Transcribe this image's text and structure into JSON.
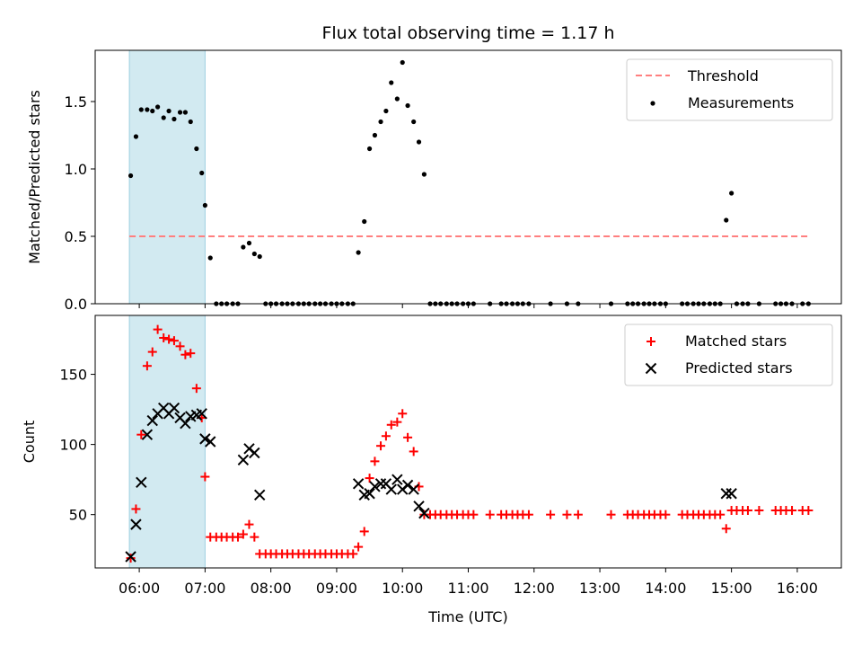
{
  "chart_data": [
    {
      "type": "scatter",
      "title": "Flux total observing time = 1.17 h",
      "xlabel": "",
      "ylabel": "Matched/Predicted stars",
      "ylim": [
        0,
        1.88
      ],
      "yticks": [
        "0.0",
        "0.5",
        "1.0",
        "1.5"
      ],
      "ytick_values": [
        0,
        0.5,
        1.0,
        1.5
      ],
      "xlim_hours": [
        5.33,
        16.67
      ],
      "shaded_span_hours": [
        5.85,
        7.0
      ],
      "shaded_color": "#add8e6",
      "legend_position": "top-right",
      "threshold": {
        "name": "Threshold",
        "value": 0.5,
        "x_range_hours": [
          5.85,
          16.17
        ],
        "color": "#ff7f7f"
      },
      "series": [
        {
          "name": "Measurements",
          "color": "#000000",
          "marker": "dot",
          "points": [
            [
              5.87,
              0.95
            ],
            [
              5.95,
              1.24
            ],
            [
              6.03,
              1.44
            ],
            [
              6.12,
              1.44
            ],
            [
              6.2,
              1.43
            ],
            [
              6.28,
              1.46
            ],
            [
              6.37,
              1.38
            ],
            [
              6.45,
              1.43
            ],
            [
              6.53,
              1.37
            ],
            [
              6.62,
              1.42
            ],
            [
              6.7,
              1.42
            ],
            [
              6.78,
              1.35
            ],
            [
              6.87,
              1.15
            ],
            [
              6.95,
              0.97
            ],
            [
              7.0,
              0.73
            ],
            [
              7.08,
              0.34
            ],
            [
              7.17,
              0.0
            ],
            [
              7.25,
              0.0
            ],
            [
              7.33,
              0.0
            ],
            [
              7.42,
              0.0
            ],
            [
              7.5,
              0.0
            ],
            [
              7.58,
              0.42
            ],
            [
              7.67,
              0.45
            ],
            [
              7.75,
              0.37
            ],
            [
              7.83,
              0.35
            ],
            [
              7.92,
              0.0
            ],
            [
              8.0,
              0.0
            ],
            [
              8.08,
              0.0
            ],
            [
              8.17,
              0.0
            ],
            [
              8.25,
              0.0
            ],
            [
              8.33,
              0.0
            ],
            [
              8.42,
              0.0
            ],
            [
              8.5,
              0.0
            ],
            [
              8.58,
              0.0
            ],
            [
              8.67,
              0.0
            ],
            [
              8.75,
              0.0
            ],
            [
              8.83,
              0.0
            ],
            [
              8.92,
              0.0
            ],
            [
              9.0,
              0.0
            ],
            [
              9.08,
              0.0
            ],
            [
              9.17,
              0.0
            ],
            [
              9.25,
              0.0
            ],
            [
              9.33,
              0.38
            ],
            [
              9.42,
              0.61
            ],
            [
              9.5,
              1.15
            ],
            [
              9.58,
              1.25
            ],
            [
              9.67,
              1.35
            ],
            [
              9.75,
              1.43
            ],
            [
              9.83,
              1.64
            ],
            [
              9.92,
              1.52
            ],
            [
              10.0,
              1.79
            ],
            [
              10.08,
              1.47
            ],
            [
              10.17,
              1.35
            ],
            [
              10.25,
              1.2
            ],
            [
              10.33,
              0.96
            ],
            [
              10.42,
              0.0
            ],
            [
              10.5,
              0.0
            ],
            [
              10.58,
              0.0
            ],
            [
              10.67,
              0.0
            ],
            [
              10.75,
              0.0
            ],
            [
              10.83,
              0.0
            ],
            [
              10.92,
              0.0
            ],
            [
              11.0,
              0.0
            ],
            [
              11.08,
              0.0
            ],
            [
              11.33,
              0.0
            ],
            [
              11.5,
              0.0
            ],
            [
              11.58,
              0.0
            ],
            [
              11.67,
              0.0
            ],
            [
              11.75,
              0.0
            ],
            [
              11.83,
              0.0
            ],
            [
              11.92,
              0.0
            ],
            [
              12.25,
              0.0
            ],
            [
              12.5,
              0.0
            ],
            [
              12.67,
              0.0
            ],
            [
              13.17,
              0.0
            ],
            [
              13.42,
              0.0
            ],
            [
              13.5,
              0.0
            ],
            [
              13.58,
              0.0
            ],
            [
              13.67,
              0.0
            ],
            [
              13.75,
              0.0
            ],
            [
              13.83,
              0.0
            ],
            [
              13.92,
              0.0
            ],
            [
              14.0,
              0.0
            ],
            [
              14.25,
              0.0
            ],
            [
              14.33,
              0.0
            ],
            [
              14.42,
              0.0
            ],
            [
              14.5,
              0.0
            ],
            [
              14.58,
              0.0
            ],
            [
              14.67,
              0.0
            ],
            [
              14.75,
              0.0
            ],
            [
              14.83,
              0.0
            ],
            [
              14.92,
              0.62
            ],
            [
              15.0,
              0.82
            ],
            [
              15.08,
              0.0
            ],
            [
              15.17,
              0.0
            ],
            [
              15.25,
              0.0
            ],
            [
              15.42,
              0.0
            ],
            [
              15.67,
              0.0
            ],
            [
              15.75,
              0.0
            ],
            [
              15.83,
              0.0
            ],
            [
              15.92,
              0.0
            ],
            [
              16.08,
              0.0
            ],
            [
              16.17,
              0.0
            ]
          ]
        }
      ]
    },
    {
      "type": "scatter",
      "title": "",
      "xlabel": "Time (UTC)",
      "ylabel": "Count",
      "ylim": [
        12,
        192
      ],
      "yticks": [
        "50",
        "100",
        "150"
      ],
      "ytick_values": [
        50,
        100,
        150
      ],
      "xlim_hours": [
        5.33,
        16.67
      ],
      "xticks": [
        "06:00",
        "07:00",
        "08:00",
        "09:00",
        "10:00",
        "11:00",
        "12:00",
        "13:00",
        "14:00",
        "15:00",
        "16:00"
      ],
      "xtick_values_hours": [
        6,
        7,
        8,
        9,
        10,
        11,
        12,
        13,
        14,
        15,
        16
      ],
      "shaded_span_hours": [
        5.85,
        7.0
      ],
      "shaded_color": "#add8e6",
      "legend_position": "top-right",
      "series": [
        {
          "name": "Matched stars",
          "color": "#ff0000",
          "marker": "plus",
          "points": [
            [
              5.87,
              19
            ],
            [
              5.95,
              54
            ],
            [
              6.03,
              107
            ],
            [
              6.12,
              156
            ],
            [
              6.2,
              166
            ],
            [
              6.28,
              182
            ],
            [
              6.37,
              176
            ],
            [
              6.45,
              175
            ],
            [
              6.53,
              174
            ],
            [
              6.62,
              170
            ],
            [
              6.7,
              164
            ],
            [
              6.78,
              165
            ],
            [
              6.87,
              140
            ],
            [
              6.95,
              119
            ],
            [
              7.0,
              77
            ],
            [
              7.08,
              34
            ],
            [
              7.17,
              34
            ],
            [
              7.25,
              34
            ],
            [
              7.33,
              34
            ],
            [
              7.42,
              34
            ],
            [
              7.5,
              34
            ],
            [
              7.58,
              36
            ],
            [
              7.67,
              43
            ],
            [
              7.75,
              34
            ],
            [
              7.83,
              22
            ],
            [
              7.92,
              22
            ],
            [
              8.0,
              22
            ],
            [
              8.08,
              22
            ],
            [
              8.17,
              22
            ],
            [
              8.25,
              22
            ],
            [
              8.33,
              22
            ],
            [
              8.42,
              22
            ],
            [
              8.5,
              22
            ],
            [
              8.58,
              22
            ],
            [
              8.67,
              22
            ],
            [
              8.75,
              22
            ],
            [
              8.83,
              22
            ],
            [
              8.92,
              22
            ],
            [
              9.0,
              22
            ],
            [
              9.08,
              22
            ],
            [
              9.17,
              22
            ],
            [
              9.25,
              22
            ],
            [
              9.33,
              27
            ],
            [
              9.42,
              38
            ],
            [
              9.5,
              76
            ],
            [
              9.58,
              88
            ],
            [
              9.67,
              99
            ],
            [
              9.75,
              106
            ],
            [
              9.83,
              114
            ],
            [
              9.92,
              116
            ],
            [
              10.0,
              122
            ],
            [
              10.08,
              105
            ],
            [
              10.17,
              95
            ],
            [
              10.25,
              70
            ],
            [
              10.33,
              50
            ],
            [
              10.42,
              50
            ],
            [
              10.5,
              50
            ],
            [
              10.58,
              50
            ],
            [
              10.67,
              50
            ],
            [
              10.75,
              50
            ],
            [
              10.83,
              50
            ],
            [
              10.92,
              50
            ],
            [
              11.0,
              50
            ],
            [
              11.08,
              50
            ],
            [
              11.33,
              50
            ],
            [
              11.5,
              50
            ],
            [
              11.58,
              50
            ],
            [
              11.67,
              50
            ],
            [
              11.75,
              50
            ],
            [
              11.83,
              50
            ],
            [
              11.92,
              50
            ],
            [
              12.25,
              50
            ],
            [
              12.5,
              50
            ],
            [
              12.67,
              50
            ],
            [
              13.17,
              50
            ],
            [
              13.42,
              50
            ],
            [
              13.5,
              50
            ],
            [
              13.58,
              50
            ],
            [
              13.67,
              50
            ],
            [
              13.75,
              50
            ],
            [
              13.83,
              50
            ],
            [
              13.92,
              50
            ],
            [
              14.0,
              50
            ],
            [
              14.25,
              50
            ],
            [
              14.33,
              50
            ],
            [
              14.42,
              50
            ],
            [
              14.5,
              50
            ],
            [
              14.58,
              50
            ],
            [
              14.67,
              50
            ],
            [
              14.75,
              50
            ],
            [
              14.83,
              50
            ],
            [
              14.92,
              40
            ],
            [
              15.0,
              53
            ],
            [
              15.08,
              53
            ],
            [
              15.17,
              53
            ],
            [
              15.25,
              53
            ],
            [
              15.42,
              53
            ],
            [
              15.67,
              53
            ],
            [
              15.75,
              53
            ],
            [
              15.83,
              53
            ],
            [
              15.92,
              53
            ],
            [
              16.08,
              53
            ],
            [
              16.17,
              53
            ]
          ]
        },
        {
          "name": "Predicted stars",
          "color": "#000000",
          "marker": "x",
          "points": [
            [
              5.87,
              20
            ],
            [
              5.95,
              43
            ],
            [
              6.03,
              73
            ],
            [
              6.12,
              107
            ],
            [
              6.2,
              117
            ],
            [
              6.28,
              122
            ],
            [
              6.37,
              126
            ],
            [
              6.45,
              122
            ],
            [
              6.53,
              126
            ],
            [
              6.62,
              119
            ],
            [
              6.7,
              115
            ],
            [
              6.78,
              120
            ],
            [
              6.87,
              121
            ],
            [
              6.95,
              122
            ],
            [
              7.0,
              104
            ],
            [
              7.08,
              102
            ],
            [
              7.58,
              89
            ],
            [
              7.67,
              97
            ],
            [
              7.75,
              94
            ],
            [
              7.83,
              64
            ],
            [
              9.33,
              72
            ],
            [
              9.42,
              64
            ],
            [
              9.5,
              65
            ],
            [
              9.58,
              70
            ],
            [
              9.67,
              72
            ],
            [
              9.75,
              72
            ],
            [
              9.83,
              68
            ],
            [
              9.92,
              75
            ],
            [
              10.0,
              68
            ],
            [
              10.08,
              71
            ],
            [
              10.17,
              68
            ],
            [
              10.25,
              56
            ],
            [
              10.33,
              51
            ],
            [
              14.92,
              65
            ],
            [
              15.0,
              65
            ]
          ]
        }
      ]
    }
  ]
}
